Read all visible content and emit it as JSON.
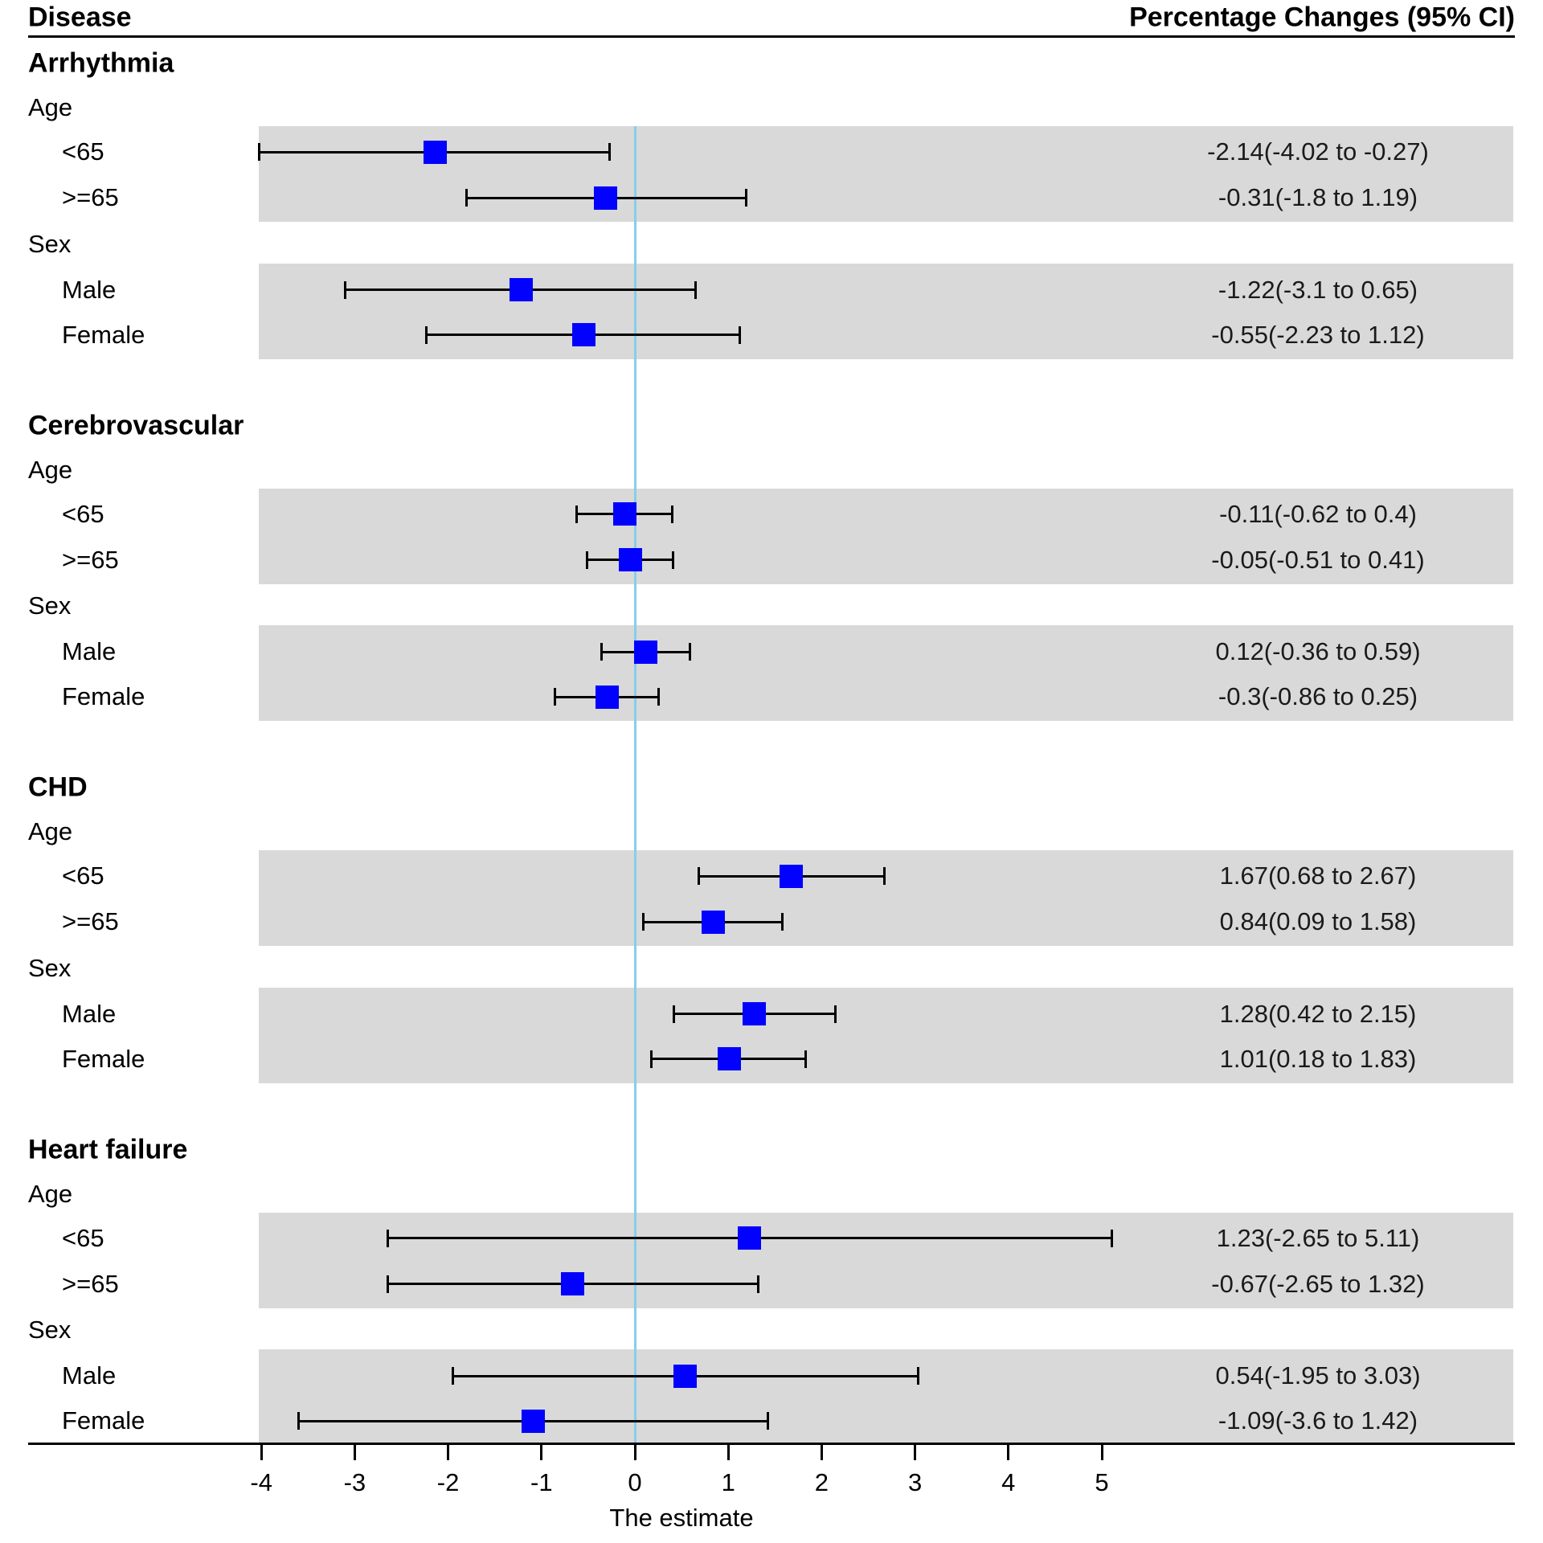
{
  "header": {
    "left": "Disease",
    "right": "Percentage Changes (95% CI)"
  },
  "axis": {
    "ticks": [
      -4,
      -3,
      -2,
      -1,
      0,
      1,
      2,
      3,
      4,
      5
    ],
    "label": "The estimate"
  },
  "colors": {
    "marker": "#0101fd",
    "band": "#d9d9d9",
    "reference_line": "#87ceeb",
    "axis_line": "#000000",
    "text": "#000000"
  },
  "chart_data": {
    "type": "forest",
    "xlabel": "The estimate",
    "ylabel": "",
    "xlim": [
      -4,
      5
    ],
    "reference_x": 0,
    "value_column_header": "Percentage Changes (95% CI)",
    "label_column_header": "Disease",
    "groups": [
      {
        "disease": "Arrhythmia",
        "subgroups": [
          {
            "label": "Age",
            "rows": [
              {
                "label": "<65",
                "estimate": -2.14,
                "ci_low": -4.02,
                "ci_high": -0.27,
                "text": "-2.14(-4.02 to -0.27)"
              },
              {
                "label": ">=65",
                "estimate": -0.31,
                "ci_low": -1.8,
                "ci_high": 1.19,
                "text": "-0.31(-1.8 to 1.19)"
              }
            ]
          },
          {
            "label": "Sex",
            "rows": [
              {
                "label": "Male",
                "estimate": -1.22,
                "ci_low": -3.1,
                "ci_high": 0.65,
                "text": "-1.22(-3.1 to 0.65)"
              },
              {
                "label": "Female",
                "estimate": -0.55,
                "ci_low": -2.23,
                "ci_high": 1.12,
                "text": "-0.55(-2.23 to 1.12)"
              }
            ]
          }
        ]
      },
      {
        "disease": "Cerebrovascular",
        "subgroups": [
          {
            "label": "Age",
            "rows": [
              {
                "label": "<65",
                "estimate": -0.11,
                "ci_low": -0.62,
                "ci_high": 0.4,
                "text": "-0.11(-0.62 to 0.4)"
              },
              {
                "label": ">=65",
                "estimate": -0.05,
                "ci_low": -0.51,
                "ci_high": 0.41,
                "text": "-0.05(-0.51 to 0.41)"
              }
            ]
          },
          {
            "label": "Sex",
            "rows": [
              {
                "label": "Male",
                "estimate": 0.12,
                "ci_low": -0.36,
                "ci_high": 0.59,
                "text": "0.12(-0.36 to 0.59)"
              },
              {
                "label": "Female",
                "estimate": -0.3,
                "ci_low": -0.86,
                "ci_high": 0.25,
                "text": "-0.3(-0.86 to 0.25)"
              }
            ]
          }
        ]
      },
      {
        "disease": "CHD",
        "subgroups": [
          {
            "label": "Age",
            "rows": [
              {
                "label": "<65",
                "estimate": 1.67,
                "ci_low": 0.68,
                "ci_high": 2.67,
                "text": "1.67(0.68 to 2.67)"
              },
              {
                "label": ">=65",
                "estimate": 0.84,
                "ci_low": 0.09,
                "ci_high": 1.58,
                "text": "0.84(0.09 to 1.58)"
              }
            ]
          },
          {
            "label": "Sex",
            "rows": [
              {
                "label": "Male",
                "estimate": 1.28,
                "ci_low": 0.42,
                "ci_high": 2.15,
                "text": "1.28(0.42 to 2.15)"
              },
              {
                "label": "Female",
                "estimate": 1.01,
                "ci_low": 0.18,
                "ci_high": 1.83,
                "text": "1.01(0.18 to 1.83)"
              }
            ]
          }
        ]
      },
      {
        "disease": "Heart failure",
        "subgroups": [
          {
            "label": "Age",
            "rows": [
              {
                "label": "<65",
                "estimate": 1.23,
                "ci_low": -2.65,
                "ci_high": 5.11,
                "text": "1.23(-2.65 to 5.11)"
              },
              {
                "label": ">=65",
                "estimate": -0.67,
                "ci_low": -2.65,
                "ci_high": 1.32,
                "text": "-0.67(-2.65 to 1.32)"
              }
            ]
          },
          {
            "label": "Sex",
            "rows": [
              {
                "label": "Male",
                "estimate": 0.54,
                "ci_low": -1.95,
                "ci_high": 3.03,
                "text": "0.54(-1.95 to 3.03)"
              },
              {
                "label": "Female",
                "estimate": -1.09,
                "ci_low": -3.6,
                "ci_high": 1.42,
                "text": "-1.09(-3.6 to 1.42)"
              }
            ]
          }
        ]
      }
    ]
  }
}
